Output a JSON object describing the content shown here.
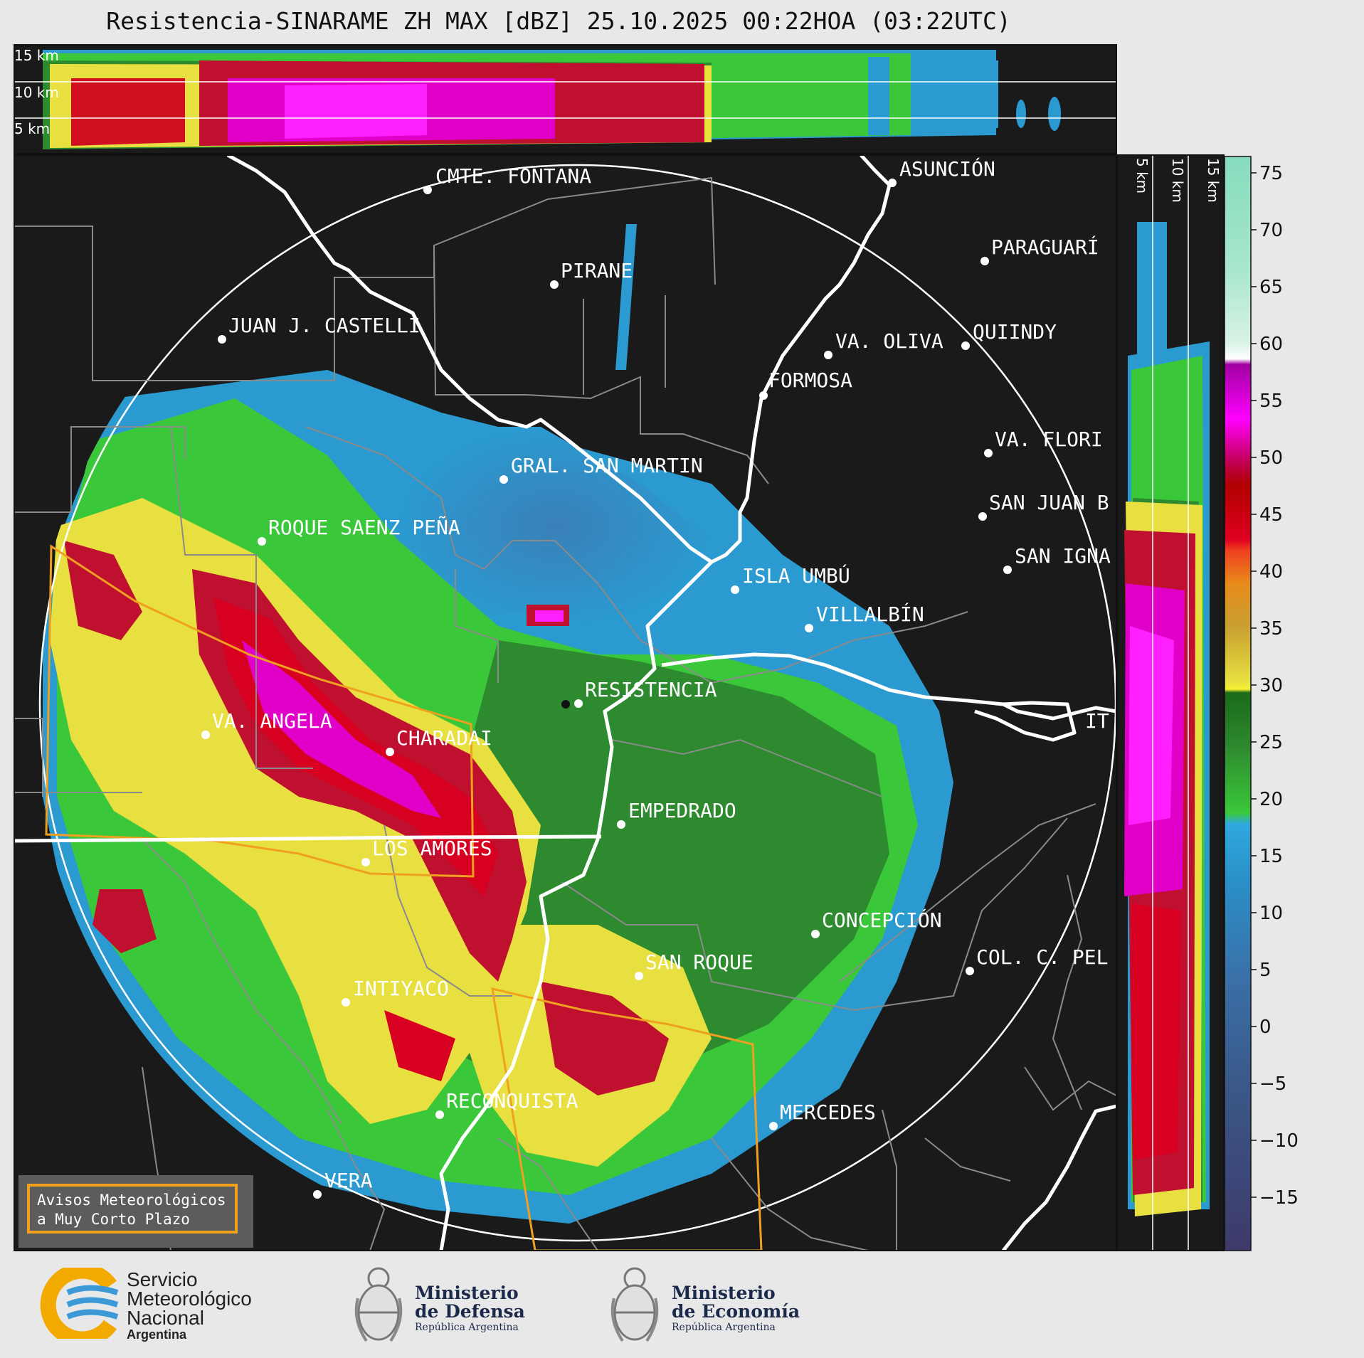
{
  "title": "Resistencia-SINARAME ZH MAX [dBZ] 25.10.2025 00:22HOA (03:22UTC)",
  "top_profile_labels": [
    "15 km",
    "10 km",
    "5 km"
  ],
  "side_profile_labels": [
    "5 km",
    "10 km",
    "15 km"
  ],
  "colorbar": {
    "ticks": [
      "75",
      "70",
      "65",
      "60",
      "55",
      "50",
      "45",
      "40",
      "35",
      "30",
      "25",
      "20",
      "15",
      "10",
      "5",
      "0",
      "−5",
      "−10",
      "−15"
    ]
  },
  "cities": [
    {
      "name": "CMTE. FONTANA"
    },
    {
      "name": "ASUNCIÓN"
    },
    {
      "name": "PIRANE"
    },
    {
      "name": "PARAGUARÍ"
    },
    {
      "name": "JUAN J. CASTELLI"
    },
    {
      "name": "VA. OLIVA"
    },
    {
      "name": "QUIINDY"
    },
    {
      "name": "FORMOSA"
    },
    {
      "name": "VA. FLORI"
    },
    {
      "name": "GRAL. SAN MARTIN"
    },
    {
      "name": "SAN JUAN B"
    },
    {
      "name": "ROQUE SAENZ PEÑA"
    },
    {
      "name": "SAN IGNA"
    },
    {
      "name": "ISLA UMBÚ"
    },
    {
      "name": "VILLALBÍN"
    },
    {
      "name": "RESISTENCIA"
    },
    {
      "name": "VA. ANGELA"
    },
    {
      "name": "CHARADAI"
    },
    {
      "name": "IT"
    },
    {
      "name": "EMPEDRADO"
    },
    {
      "name": "LOS AMORES"
    },
    {
      "name": "CONCEPCIÓN"
    },
    {
      "name": "SAN ROQUE"
    },
    {
      "name": "COL. C. PEL"
    },
    {
      "name": "INTIYACO"
    },
    {
      "name": "RECONQUISTA"
    },
    {
      "name": "MERCEDES"
    },
    {
      "name": "VERA"
    }
  ],
  "warning_box": {
    "line1": "Avisos Meteorológicos",
    "line2": "a Muy Corto Plazo"
  },
  "logos": {
    "smn": {
      "line1": "Servicio",
      "line2": "Meteorológico",
      "line3": "Nacional",
      "line4": "Argentina"
    },
    "defensa": {
      "line1": "Ministerio",
      "line2": "de Defensa",
      "line3": "República Argentina"
    },
    "economia": {
      "line1": "Ministerio",
      "line2": "de Economía",
      "line3": "República Argentina"
    }
  }
}
